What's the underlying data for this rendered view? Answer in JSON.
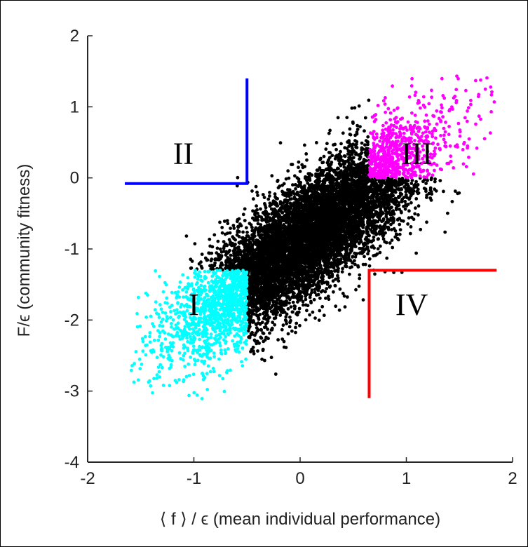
{
  "chart_data": {
    "type": "scatter",
    "xlabel": "⟨ f ⟩ / ϵ (mean individual performance)",
    "ylabel": "F/ϵ (community fitness)",
    "xlim": [
      -2,
      2
    ],
    "ylim": [
      -4,
      2
    ],
    "x_ticks": [
      "-2",
      "-1",
      "0",
      "1",
      "2"
    ],
    "y_ticks": [
      "2",
      "1",
      "0",
      "-1",
      "-2",
      "-3",
      "-4"
    ],
    "grid": false,
    "point_cloud": {
      "trend_slope": 1.05,
      "trend_intercept": -0.9,
      "x_range": [
        -1.6,
        1.85
      ]
    },
    "regions": [
      {
        "label": "I",
        "color": "#00ffff",
        "x_max": -0.5,
        "y_max": -1.3,
        "label_pos": [
          -1.0,
          -1.93
        ]
      },
      {
        "label": "II",
        "color": "#0000ff",
        "x_max": -0.5,
        "y_min": -0.08,
        "label_pos": [
          -1.1,
          0.2
        ],
        "corner": [
          -1.65,
          -0.08,
          -0.5,
          1.4
        ]
      },
      {
        "label": "III",
        "color": "#ff00ff",
        "x_min": 0.65,
        "y_min": 0.0,
        "label_pos": [
          1.1,
          0.2
        ]
      },
      {
        "label": "IV",
        "color": "#ff0000",
        "x_min": 0.65,
        "y_max": -1.3,
        "label_pos": [
          1.05,
          -1.93
        ],
        "corner": [
          0.65,
          -3.1,
          1.85,
          -1.3
        ]
      }
    ]
  }
}
